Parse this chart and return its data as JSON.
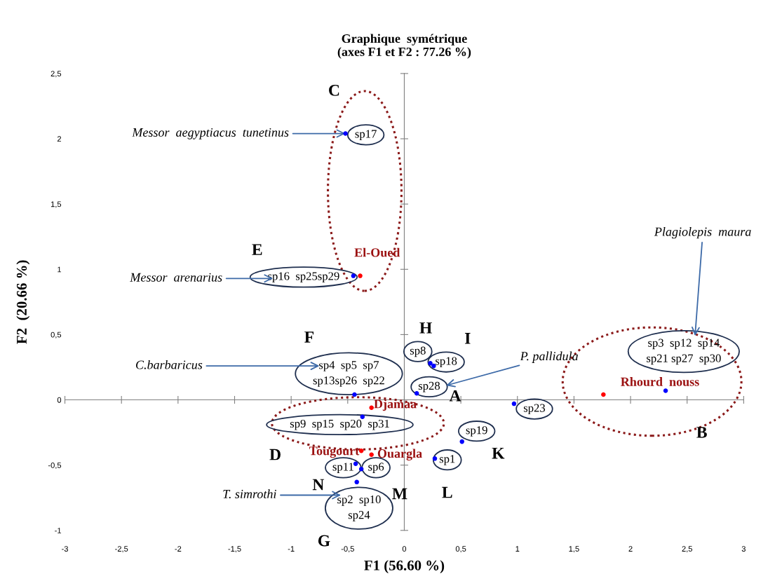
{
  "chart_data": {
    "type": "scatter",
    "title": "Graphique  symétrique\n(axes F1 et F2 : 77.26 %)",
    "xlabel": "F1 (56.60 %)",
    "ylabel": "F2  (20.66 %)",
    "series": [
      {
        "color": "#0000ff",
        "x": [
          -0.52,
          -0.45,
          -0.44,
          -0.37,
          0.23,
          0.26,
          0.11,
          0.97,
          0.51,
          0.27,
          -0.43,
          -0.38,
          -0.42,
          2.31
        ],
        "values": [
          2.04,
          0.95,
          0.04,
          -0.13,
          0.28,
          0.26,
          0.05,
          -0.03,
          -0.32,
          -0.45,
          -0.49,
          -0.53,
          -0.63,
          0.07
        ]
      },
      {
        "color": "#ff0000",
        "x": [
          -0.39,
          -0.29,
          -0.38,
          -0.29,
          1.76
        ],
        "values": [
          0.95,
          -0.06,
          -0.39,
          -0.42,
          0.04
        ]
      }
    ],
    "annotations": [
      "C",
      "E",
      "F",
      "H",
      "I",
      "A",
      "B",
      "D",
      "K",
      "L",
      "M",
      "N",
      "G",
      "sp17",
      "sp16  sp25sp29",
      "sp4  sp5  sp7\nsp13sp26  sp22",
      "sp9  sp15  sp20  sp31",
      "sp8",
      "sp18",
      "sp28",
      "sp23",
      "sp19",
      "sp1",
      "sp11",
      "sp6",
      "sp2  sp10\nsp24",
      "sp3  sp12  sp14\nsp21 sp27  sp30",
      "El-Oued",
      "Djamaa",
      "Tougourt",
      "Ouargla",
      "Rhourd  nouss",
      {
        "text": "Messor  aegyptiacus  tunetinus",
        "x": -0.52,
        "y": 2.04
      },
      "Messor  arenarius",
      "C.barbaricus",
      "T. simrothi",
      "P. pallidula",
      "Plagiolepis  maura"
    ],
    "xlim": [
      -3,
      3
    ],
    "ylim": [
      -1,
      2.5
    ],
    "xticks": [
      -3,
      {
        "value": -2.5,
        "label": "-2,5"
      },
      -2,
      {
        "value": -1.5,
        "label": "-1,5"
      },
      -1,
      {
        "value": -0.5,
        "label": "-0,5"
      },
      0,
      {
        "value": 0.5,
        "label": "0,5"
      },
      1,
      {
        "value": 1.5,
        "label": "1,5"
      },
      2,
      {
        "value": 2.5,
        "label": "2,5"
      },
      3
    ],
    "yticks": [
      -1,
      {
        "value": -0.5,
        "label": "-0,5"
      },
      0,
      {
        "value": 0.5,
        "label": "0,5"
      },
      1,
      {
        "value": 1.5,
        "label": "1,5"
      },
      2,
      {
        "value": 2.5,
        "label": "2,5"
      }
    ],
    "marker": "circle"
  }
}
